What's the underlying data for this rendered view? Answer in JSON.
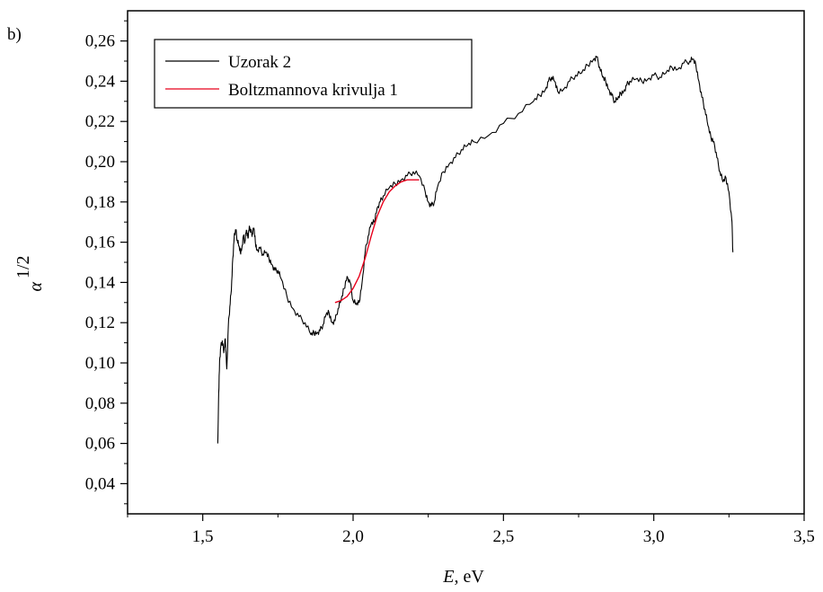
{
  "panel_label": "b)",
  "chart_data": {
    "type": "line",
    "xlabel_italic": "E",
    "xlabel_rest": ", eV",
    "ylabel_symbol": "α",
    "ylabel_exponent": "1/2",
    "xlim": [
      1.25,
      3.5
    ],
    "ylim": [
      0.025,
      0.275
    ],
    "x_ticks": [
      1.5,
      2.0,
      2.5,
      3.0,
      3.5
    ],
    "x_tick_labels": [
      "1,5",
      "2,0",
      "2,5",
      "3,0",
      "3,5"
    ],
    "y_ticks": [
      0.04,
      0.06,
      0.08,
      0.1,
      0.12,
      0.14,
      0.16,
      0.18,
      0.2,
      0.22,
      0.24,
      0.26
    ],
    "y_tick_labels": [
      "0,04",
      "0,06",
      "0,08",
      "0,10",
      "0,12",
      "0,14",
      "0,16",
      "0,18",
      "0,20",
      "0,22",
      "0,24",
      "0,26"
    ],
    "legend_position": "top-left",
    "series": [
      {
        "name": "Uzorak 2",
        "color": "#000000",
        "x": [
          1.55,
          1.553,
          1.556,
          1.56,
          1.565,
          1.57,
          1.575,
          1.58,
          1.585,
          1.59,
          1.595,
          1.6,
          1.605,
          1.61,
          1.615,
          1.62,
          1.625,
          1.63,
          1.635,
          1.64,
          1.645,
          1.65,
          1.655,
          1.66,
          1.665,
          1.67,
          1.675,
          1.68,
          1.69,
          1.7,
          1.71,
          1.72,
          1.73,
          1.74,
          1.75,
          1.76,
          1.78,
          1.8,
          1.82,
          1.84,
          1.86,
          1.87,
          1.88,
          1.89,
          1.9,
          1.91,
          1.92,
          1.93,
          1.94,
          1.95,
          1.96,
          1.97,
          1.98,
          1.99,
          2.0,
          2.01,
          2.02,
          2.03,
          2.04,
          2.05,
          2.06,
          2.07,
          2.08,
          2.09,
          2.1,
          2.12,
          2.14,
          2.16,
          2.18,
          2.2,
          2.22,
          2.24,
          2.25,
          2.26,
          2.27,
          2.28,
          2.3,
          2.32,
          2.34,
          2.36,
          2.38,
          2.4,
          2.45,
          2.5,
          2.55,
          2.6,
          2.62,
          2.64,
          2.65,
          2.66,
          2.67,
          2.68,
          2.7,
          2.72,
          2.74,
          2.76,
          2.78,
          2.8,
          2.81,
          2.82,
          2.83,
          2.84,
          2.85,
          2.86,
          2.87,
          2.88,
          2.89,
          2.9,
          2.91,
          2.92,
          2.94,
          2.96,
          2.98,
          3.0,
          3.02,
          3.04,
          3.06,
          3.08,
          3.1,
          3.12,
          3.13,
          3.14,
          3.15,
          3.16,
          3.17,
          3.18,
          3.19,
          3.2,
          3.21,
          3.22,
          3.23,
          3.24,
          3.25,
          3.26,
          3.263
        ],
        "y": [
          0.06,
          0.085,
          0.101,
          0.108,
          0.111,
          0.105,
          0.112,
          0.097,
          0.118,
          0.128,
          0.136,
          0.152,
          0.164,
          0.166,
          0.161,
          0.158,
          0.155,
          0.157,
          0.163,
          0.16,
          0.166,
          0.162,
          0.168,
          0.165,
          0.164,
          0.167,
          0.16,
          0.156,
          0.157,
          0.154,
          0.155,
          0.152,
          0.149,
          0.146,
          0.146,
          0.142,
          0.133,
          0.127,
          0.123,
          0.12,
          0.114,
          0.115,
          0.115,
          0.116,
          0.119,
          0.124,
          0.125,
          0.12,
          0.121,
          0.127,
          0.131,
          0.137,
          0.143,
          0.14,
          0.131,
          0.129,
          0.13,
          0.14,
          0.155,
          0.163,
          0.169,
          0.17,
          0.177,
          0.18,
          0.183,
          0.187,
          0.189,
          0.191,
          0.193,
          0.195,
          0.193,
          0.185,
          0.18,
          0.178,
          0.18,
          0.187,
          0.195,
          0.199,
          0.202,
          0.206,
          0.208,
          0.21,
          0.213,
          0.219,
          0.224,
          0.23,
          0.233,
          0.236,
          0.24,
          0.242,
          0.24,
          0.235,
          0.236,
          0.24,
          0.243,
          0.244,
          0.248,
          0.251,
          0.252,
          0.247,
          0.242,
          0.24,
          0.236,
          0.233,
          0.23,
          0.231,
          0.234,
          0.235,
          0.238,
          0.24,
          0.241,
          0.24,
          0.241,
          0.243,
          0.242,
          0.244,
          0.247,
          0.246,
          0.249,
          0.25,
          0.251,
          0.248,
          0.24,
          0.232,
          0.226,
          0.218,
          0.212,
          0.21,
          0.202,
          0.195,
          0.19,
          0.192,
          0.185,
          0.17,
          0.155
        ]
      },
      {
        "name": "Boltzmannova krivulja 1",
        "color": "#e8001c",
        "x": [
          1.94,
          1.96,
          1.98,
          2.0,
          2.02,
          2.04,
          2.06,
          2.08,
          2.1,
          2.12,
          2.14,
          2.16,
          2.18,
          2.2,
          2.22
        ],
        "y": [
          0.13,
          0.131,
          0.133,
          0.137,
          0.143,
          0.152,
          0.163,
          0.173,
          0.18,
          0.185,
          0.188,
          0.19,
          0.191,
          0.191,
          0.191
        ]
      }
    ]
  }
}
